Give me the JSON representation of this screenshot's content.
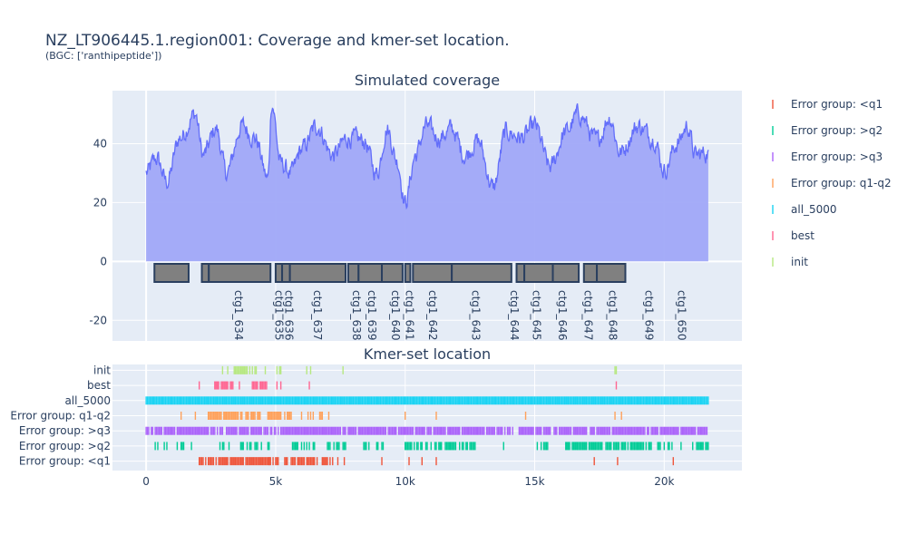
{
  "title": "NZ_LT906445.1.region001: Coverage and kmer-set location.",
  "subtitle": "(BGC: ['ranthipeptide'])",
  "colors": {
    "coverage_line": "#636efa",
    "coverage_fill": "#a0a8f8",
    "contig_fill": "#808080",
    "contig_stroke": "#2a3f5f",
    "plot_bg": "#e5ecf6"
  },
  "chart_data": [
    {
      "type": "area",
      "title": "Simulated coverage",
      "xlim": [
        -1300,
        23000
      ],
      "ylim": [
        -27,
        58
      ],
      "yticks": [
        -20,
        0,
        20,
        40
      ],
      "grid": true,
      "coverage": {
        "x_start": 0,
        "x_end": 21700,
        "profile": [
          [
            0,
            30
          ],
          [
            400,
            35
          ],
          [
            800,
            27
          ],
          [
            1300,
            42
          ],
          [
            1900,
            50
          ],
          [
            2200,
            36
          ],
          [
            2700,
            45
          ],
          [
            3100,
            30
          ],
          [
            3700,
            46
          ],
          [
            4200,
            42
          ],
          [
            4700,
            28
          ],
          [
            4850,
            54
          ],
          [
            5200,
            33
          ],
          [
            5600,
            30
          ],
          [
            6000,
            38
          ],
          [
            6600,
            46
          ],
          [
            7200,
            36
          ],
          [
            7800,
            42
          ],
          [
            8400,
            41
          ],
          [
            8900,
            30
          ],
          [
            9300,
            45
          ],
          [
            9700,
            34
          ],
          [
            10000,
            20
          ],
          [
            10400,
            36
          ],
          [
            10800,
            46
          ],
          [
            11300,
            42
          ],
          [
            11800,
            45
          ],
          [
            12300,
            36
          ],
          [
            12800,
            41
          ],
          [
            13400,
            25
          ],
          [
            13900,
            44
          ],
          [
            14500,
            42
          ],
          [
            15000,
            46
          ],
          [
            15600,
            32
          ],
          [
            16200,
            44
          ],
          [
            16700,
            50
          ],
          [
            17400,
            41
          ],
          [
            17900,
            49
          ],
          [
            18300,
            37
          ],
          [
            19000,
            46
          ],
          [
            19600,
            42
          ],
          [
            20000,
            31
          ],
          [
            20500,
            40
          ],
          [
            20900,
            46
          ],
          [
            21200,
            36
          ],
          [
            21700,
            37
          ]
        ]
      },
      "contigs": [
        {
          "label": "ctg1_634",
          "start": 320,
          "end": 1640
        },
        {
          "label": "ctg1_635",
          "start": 2150,
          "end": 2420
        },
        {
          "label": "ctg1_636",
          "start": 2420,
          "end": 4800
        },
        {
          "label": "ctg1_637",
          "start": 5000,
          "end": 5250
        },
        {
          "label": "ctg1_638",
          "start": 5250,
          "end": 5550
        },
        {
          "label": "ctg1_639",
          "start": 5550,
          "end": 7700
        },
        {
          "label": "ctg1_640",
          "start": 7800,
          "end": 8200
        },
        {
          "label": "ctg1_641",
          "start": 8200,
          "end": 9100
        },
        {
          "label": "ctg1_642",
          "start": 9100,
          "end": 9900
        },
        {
          "label": "ctg1_643",
          "start": 10000,
          "end": 10200
        },
        {
          "label": "ctg1_644",
          "start": 10300,
          "end": 11800
        },
        {
          "label": "ctg1_645",
          "start": 11800,
          "end": 14100
        },
        {
          "label": "ctg1_646",
          "start": 14300,
          "end": 14600
        },
        {
          "label": "ctg1_647",
          "start": 14600,
          "end": 15700
        },
        {
          "label": "ctg1_648",
          "start": 15700,
          "end": 16700
        },
        {
          "label": "ctg1_649",
          "start": 16900,
          "end": 17400
        },
        {
          "label": "ctg1_650",
          "start": 17400,
          "end": 18500
        }
      ],
      "contig_label_positions": [
        {
          "label": "ctg1_634",
          "x": 3550
        },
        {
          "label": "ctg1_635",
          "x": 5100
        },
        {
          "label": "ctg1_636",
          "x": 5500
        },
        {
          "label": "ctg1_637",
          "x": 6600
        },
        {
          "label": "ctg1_638",
          "x": 8100
        },
        {
          "label": "ctg1_639",
          "x": 8700
        },
        {
          "label": "ctg1_640",
          "x": 9600
        },
        {
          "label": "ctg1_641",
          "x": 10150
        },
        {
          "label": "ctg1_642",
          "x": 11050
        },
        {
          "label": "ctg1_643",
          "x": 12700
        },
        {
          "label": "ctg1_644",
          "x": 14200
        },
        {
          "label": "ctg1_645",
          "x": 15050
        },
        {
          "label": "ctg1_646",
          "x": 16050
        },
        {
          "label": "ctg1_647",
          "x": 17050
        },
        {
          "label": "ctg1_648",
          "x": 18000
        },
        {
          "label": "ctg1_649",
          "x": 19400
        },
        {
          "label": "ctg1_650",
          "x": 20650
        }
      ]
    },
    {
      "type": "scatter",
      "title": "Kmer-set location",
      "xlim": [
        -1300,
        23000
      ],
      "xticks": [
        0,
        5000,
        10000,
        15000,
        20000
      ],
      "xtick_labels": [
        "0",
        "5k",
        "10k",
        "15k",
        "20k"
      ],
      "categories": [
        "Error group: <q1",
        "Error group: >q2",
        "Error group: >q3",
        "Error group: q1-q2",
        "all_5000",
        "best",
        "init"
      ],
      "series": [
        {
          "name": "Error group: <q1",
          "color": "#ef553b",
          "segments": [
            [
              2100,
              2400,
              0.6
            ],
            [
              2400,
              4750,
              0.85
            ],
            [
              4750,
              5100,
              0.6
            ],
            [
              5300,
              6850,
              0.75
            ],
            [
              6850,
              7650,
              0.4
            ]
          ],
          "points": [
            2050,
            9100,
            10150,
            10650,
            11200,
            17300,
            18200,
            20350
          ]
        },
        {
          "name": "Error group: >q2",
          "color": "#00cc96",
          "segments": [
            [
              100,
              2100,
              0.35
            ],
            [
              2600,
              4800,
              0.4
            ],
            [
              5600,
              6500,
              0.35
            ],
            [
              7000,
              7700,
              0.85
            ],
            [
              8400,
              9300,
              0.5
            ],
            [
              10000,
              11600,
              0.6
            ],
            [
              11600,
              12700,
              0.75
            ],
            [
              15100,
              15500,
              0.6
            ],
            [
              16200,
              18500,
              0.85
            ],
            [
              18500,
              20300,
              0.45
            ],
            [
              21100,
              21700,
              0.5
            ]
          ],
          "points": [
            13800,
            19500,
            20650
          ]
        },
        {
          "name": "Error group: >q3",
          "color": "#ab63fa",
          "segments": [
            [
              0,
              21700,
              0.9
            ]
          ],
          "points": []
        },
        {
          "name": "Error group: q1-q2",
          "color": "#ffa15a",
          "segments": [
            [
              2350,
              3700,
              0.9
            ],
            [
              3800,
              4400,
              0.6
            ],
            [
              4700,
              5600,
              0.85
            ],
            [
              6000,
              6850,
              0.6
            ]
          ],
          "points": [
            1350,
            1900,
            7050,
            10000,
            11200,
            14650,
            18100,
            18350
          ]
        },
        {
          "name": "all_5000",
          "color": "#19d3f3",
          "segments": [
            [
              0,
              21700,
              1.0
            ]
          ],
          "points": []
        },
        {
          "name": "best",
          "color": "#ff6692",
          "segments": [
            [
              2700,
              3600,
              0.65
            ],
            [
              4100,
              4650,
              0.75
            ]
          ],
          "points": [
            2050,
            2650,
            5050,
            5200,
            6300,
            18150
          ]
        },
        {
          "name": "init",
          "color": "#b6e880",
          "segments": [
            [
              3350,
              4600,
              0.5
            ]
          ],
          "points": [
            2950,
            3150,
            5050,
            5150,
            5200,
            6200,
            6350,
            7600,
            18100,
            18150
          ]
        }
      ]
    }
  ],
  "legend": {
    "placement": "right",
    "entries": [
      "Error group: <q1",
      "Error group: >q2",
      "Error group: >q3",
      "Error group: q1-q2",
      "all_5000",
      "best",
      "init"
    ]
  }
}
